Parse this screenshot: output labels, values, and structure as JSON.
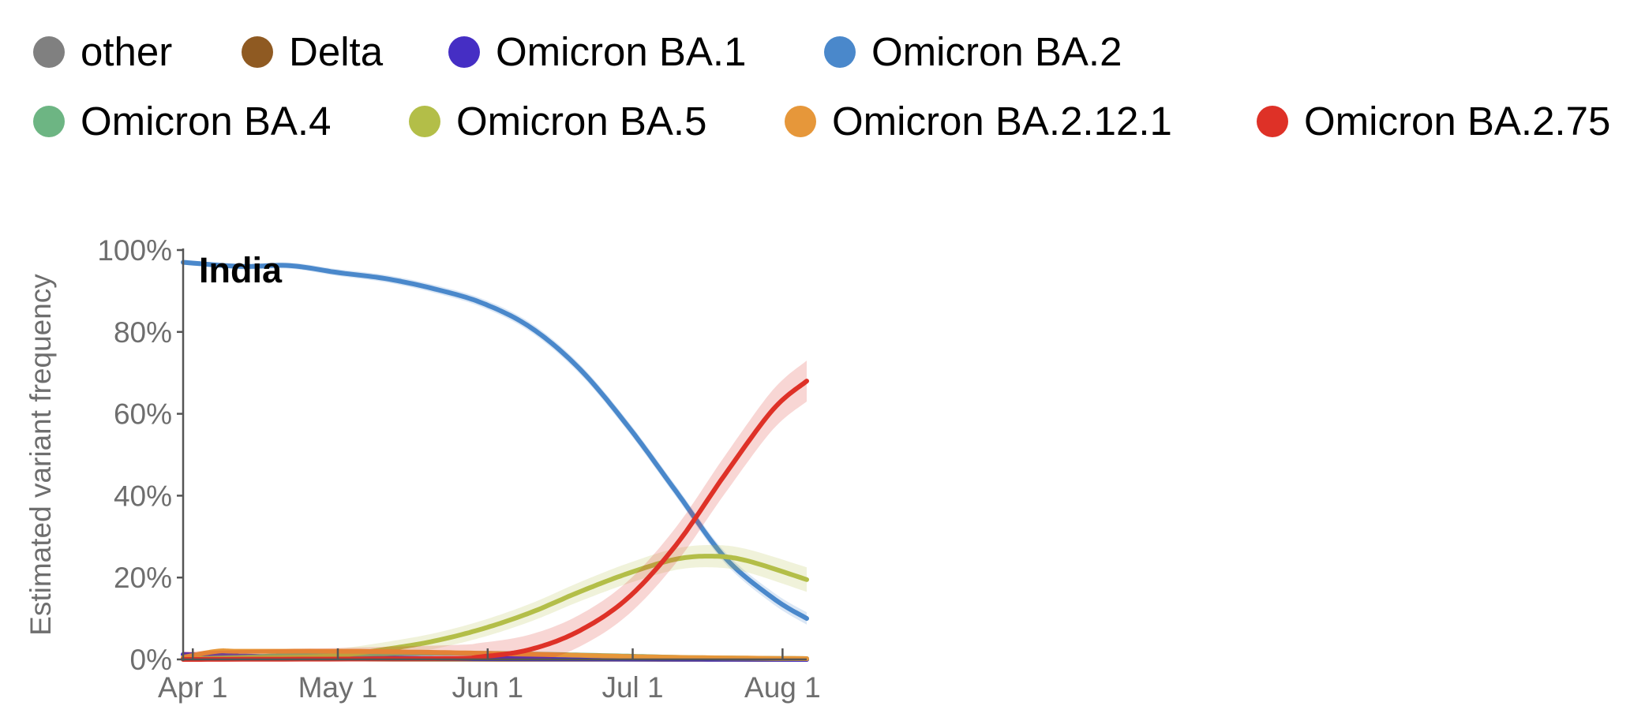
{
  "legend": {
    "items": [
      {
        "label": "other",
        "color": "#808080"
      },
      {
        "label": "Delta",
        "color": "#8f5a22"
      },
      {
        "label": "Omicron BA.1",
        "color": "#452ec4"
      },
      {
        "label": "Omicron BA.2",
        "color": "#4a88cb"
      },
      {
        "label": "Omicron BA.4",
        "color": "#6db583"
      },
      {
        "label": "Omicron BA.5",
        "color": "#b3be48"
      },
      {
        "label": "Omicron BA.2.12.1",
        "color": "#e6973a"
      },
      {
        "label": "Omicron BA.2.75",
        "color": "#de3127"
      }
    ]
  },
  "chart_data": {
    "type": "line",
    "title": "India",
    "ylabel": "Estimated variant frequency",
    "xlabel": "",
    "ylim": [
      0,
      100
    ],
    "yticks": [
      "0%",
      "20%",
      "40%",
      "60%",
      "80%",
      "100%"
    ],
    "xticks": [
      "Apr 1",
      "May 1",
      "Jun 1",
      "Jul 1",
      "Aug 1"
    ],
    "x_unit": "days since Apr 1",
    "xrange": [
      -2,
      127
    ],
    "grid": false,
    "confidence_bands": true,
    "series": [
      {
        "name": "other",
        "color": "#808080",
        "points": [
          [
            -2,
            0.3
          ],
          [
            30,
            0.2
          ],
          [
            60,
            0.2
          ],
          [
            90,
            0.1
          ],
          [
            127,
            0.1
          ]
        ]
      },
      {
        "name": "Delta",
        "color": "#8f5a22",
        "points": [
          [
            -2,
            0.2
          ],
          [
            30,
            0.1
          ],
          [
            127,
            0.0
          ]
        ]
      },
      {
        "name": "Omicron BA.1",
        "color": "#452ec4",
        "points": [
          [
            -2,
            1.2
          ],
          [
            5,
            1.0
          ],
          [
            15,
            0.7
          ],
          [
            30,
            0.4
          ],
          [
            60,
            0.2
          ],
          [
            127,
            0.0
          ]
        ]
      },
      {
        "name": "Omicron BA.2",
        "color": "#4a88cb",
        "band": 1.5,
        "points": [
          [
            -2,
            97
          ],
          [
            10,
            96
          ],
          [
            20,
            96.2
          ],
          [
            30,
            94.5
          ],
          [
            40,
            93
          ],
          [
            50,
            90.5
          ],
          [
            60,
            87
          ],
          [
            70,
            81
          ],
          [
            80,
            71
          ],
          [
            90,
            57
          ],
          [
            100,
            41
          ],
          [
            110,
            25
          ],
          [
            120,
            15
          ],
          [
            127,
            10
          ]
        ]
      },
      {
        "name": "Omicron BA.4",
        "color": "#6db583",
        "points": [
          [
            -2,
            0.1
          ],
          [
            10,
            0.5
          ],
          [
            20,
            1.0
          ],
          [
            30,
            1.2
          ],
          [
            45,
            1.5
          ],
          [
            60,
            1.5
          ],
          [
            75,
            1.2
          ],
          [
            90,
            0.8
          ],
          [
            105,
            0.4
          ],
          [
            127,
            0.2
          ]
        ]
      },
      {
        "name": "Omicron BA.5",
        "color": "#b3be48",
        "band": 3,
        "points": [
          [
            -2,
            0.1
          ],
          [
            20,
            0.5
          ],
          [
            30,
            1.0
          ],
          [
            40,
            2.5
          ],
          [
            50,
            4.5
          ],
          [
            60,
            7.5
          ],
          [
            70,
            11.5
          ],
          [
            80,
            16.5
          ],
          [
            90,
            21
          ],
          [
            100,
            24.5
          ],
          [
            108,
            25.2
          ],
          [
            115,
            24
          ],
          [
            127,
            19.5
          ]
        ]
      },
      {
        "name": "Omicron BA.2.12.1",
        "color": "#e6973a",
        "points": [
          [
            -2,
            0.5
          ],
          [
            5,
            2.0
          ],
          [
            10,
            2.0
          ],
          [
            30,
            2.0
          ],
          [
            45,
            1.8
          ],
          [
            60,
            1.5
          ],
          [
            80,
            1.0
          ],
          [
            100,
            0.5
          ],
          [
            127,
            0.2
          ]
        ]
      },
      {
        "name": "Omicron BA.2.75",
        "color": "#de3127",
        "band": 5,
        "points": [
          [
            -2,
            0.0
          ],
          [
            50,
            0.2
          ],
          [
            60,
            0.7
          ],
          [
            70,
            2.5
          ],
          [
            80,
            7.0
          ],
          [
            90,
            15
          ],
          [
            100,
            28
          ],
          [
            110,
            45
          ],
          [
            120,
            61
          ],
          [
            127,
            68
          ]
        ]
      }
    ]
  }
}
